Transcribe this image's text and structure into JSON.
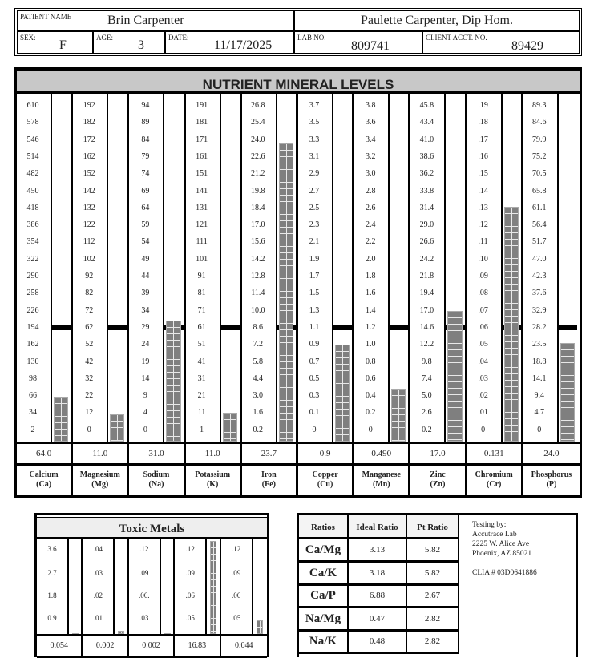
{
  "header": {
    "patient_name_label": "PATIENT NAME",
    "patient_name": "Brin Carpenter",
    "practitioner": "Paulette Carpenter, Dip Hom.",
    "sex_label": "SEX:",
    "sex": "F",
    "age_label": "AGE:",
    "age": "3",
    "date_label": "DATE:",
    "date": "11/17/2025",
    "lab_no_label": "LAB NO.",
    "lab_no": "809741",
    "client_acct_label": "CLIENT ACCT. NO.",
    "client_acct": "89429"
  },
  "nutrient": {
    "title": "NUTRIENT MINERAL LEVELS",
    "bar_color": "#7f7f7f",
    "minerals": [
      {
        "name": "Calcium",
        "symbol": "(Ca)",
        "value": "64.0",
        "scale": [
          "610",
          "578",
          "546",
          "514",
          "482",
          "450",
          "418",
          "386",
          "354",
          "322",
          "290",
          "258",
          "226",
          "194",
          "162",
          "130",
          "98",
          "66",
          "34",
          "2"
        ]
      },
      {
        "name": "Magnesium",
        "symbol": "(Mg)",
        "value": "11.0",
        "scale": [
          "192",
          "182",
          "172",
          "162",
          "152",
          "142",
          "132",
          "122",
          "112",
          "102",
          "92",
          "82",
          "72",
          "62",
          "52",
          "42",
          "32",
          "22",
          "12",
          "0"
        ]
      },
      {
        "name": "Sodium",
        "symbol": "(Na)",
        "value": "31.0",
        "scale": [
          "94",
          "89",
          "84",
          "79",
          "74",
          "69",
          "64",
          "59",
          "54",
          "49",
          "44",
          "39",
          "34",
          "29",
          "24",
          "19",
          "14",
          "9",
          "4",
          "0"
        ]
      },
      {
        "name": "Potassium",
        "symbol": "(K)",
        "value": "11.0",
        "scale": [
          "191",
          "181",
          "171",
          "161",
          "151",
          "141",
          "131",
          "121",
          "111",
          "101",
          "91",
          "81",
          "71",
          "61",
          "51",
          "41",
          "31",
          "21",
          "11",
          "1"
        ]
      },
      {
        "name": "Iron",
        "symbol": "(Fe)",
        "value": "23.7",
        "scale": [
          "26.8",
          "25.4",
          "24.0",
          "22.6",
          "21.2",
          "19.8",
          "18.4",
          "17.0",
          "15.6",
          "14.2",
          "12.8",
          "11.4",
          "10.0",
          "8.6",
          "7.2",
          "5.8",
          "4.4",
          "3.0",
          "1.6",
          "0.2"
        ]
      },
      {
        "name": "Copper",
        "symbol": "(Cu)",
        "value": "0.9",
        "scale": [
          "3.7",
          "3.5",
          "3.3",
          "3.1",
          "2.9",
          "2.7",
          "2.5",
          "2.3",
          "2.1",
          "1.9",
          "1.7",
          "1.5",
          "1.3",
          "1.1",
          "0.9",
          "0.7",
          "0.5",
          "0.3",
          "0.1",
          "0"
        ]
      },
      {
        "name": "Manganese",
        "symbol": "(Mn)",
        "value": "0.490",
        "scale": [
          "3.8",
          "3.6",
          "3.4",
          "3.2",
          "3.0",
          "2.8",
          "2.6",
          "2.4",
          "2.2",
          "2.0",
          "1.8",
          "1.6",
          "1.4",
          "1.2",
          "1.0",
          "0.8",
          "0.6",
          "0.4",
          "0.2",
          "0"
        ]
      },
      {
        "name": "Zinc",
        "symbol": "(Zn)",
        "value": "17.0",
        "scale": [
          "45.8",
          "43.4",
          "41.0",
          "38.6",
          "36.2",
          "33.8",
          "31.4",
          "29.0",
          "26.6",
          "24.2",
          "21.8",
          "19.4",
          "17.0",
          "14.6",
          "12.2",
          "9.8",
          "7.4",
          "5.0",
          "2.6",
          "0.2"
        ]
      },
      {
        "name": "Chromium",
        "symbol": "(Cr)",
        "value": "0.131",
        "scale": [
          ".19",
          ".18",
          ".17",
          ".16",
          ".15",
          ".14",
          ".13",
          ".12",
          ".11",
          ".10",
          ".09",
          ".08",
          ".07",
          ".06",
          ".05",
          ".04",
          ".03",
          ".02",
          ".01",
          "0"
        ]
      },
      {
        "name": "Phosphorus",
        "symbol": "(P)",
        "value": "24.0",
        "scale": [
          "89.3",
          "84.6",
          "79.9",
          "75.2",
          "70.5",
          "65.8",
          "61.1",
          "56.4",
          "51.7",
          "47.0",
          "42.3",
          "37.6",
          "32.9",
          "28.2",
          "23.5",
          "18.8",
          "14.1",
          "9.4",
          "4.7",
          "0"
        ]
      }
    ]
  },
  "toxic": {
    "title": "Toxic Metals",
    "metals": [
      {
        "value": "0.054",
        "scale": [
          "3.6",
          "2.7",
          "1.8",
          "0.9"
        ]
      },
      {
        "value": "0.002",
        "scale": [
          ".04",
          ".03",
          ".02",
          ".01"
        ]
      },
      {
        "value": "0.002",
        "scale": [
          ".12",
          ".09",
          ".06.",
          ".03"
        ]
      },
      {
        "value": "16.83",
        "scale": [
          ".12",
          ".09",
          ".06",
          ".05"
        ]
      },
      {
        "value": "0.044",
        "scale": [
          ".12",
          ".09",
          ".06",
          ".05"
        ]
      }
    ]
  },
  "ratios": {
    "headers": [
      "Ratios",
      "Ideal Ratio",
      "Pt Ratio"
    ],
    "rows": [
      {
        "ratio": "Ca/Mg",
        "ideal": "3.13",
        "pt": "5.82"
      },
      {
        "ratio": "Ca/K",
        "ideal": "3.18",
        "pt": "5.82"
      },
      {
        "ratio": "Ca/P",
        "ideal": "6.88",
        "pt": "2.67"
      },
      {
        "ratio": "Na/Mg",
        "ideal": "0.47",
        "pt": "2.82"
      },
      {
        "ratio": "Na/K",
        "ideal": "0.48",
        "pt": "2.82"
      }
    ],
    "lab": {
      "line1": "Testing by:",
      "line2": "Accutrace Lab",
      "line3": "2225 W. Alice Ave",
      "line4": "Phoenix, AZ 85021",
      "clia": "CLIA # 03D0641886"
    }
  }
}
